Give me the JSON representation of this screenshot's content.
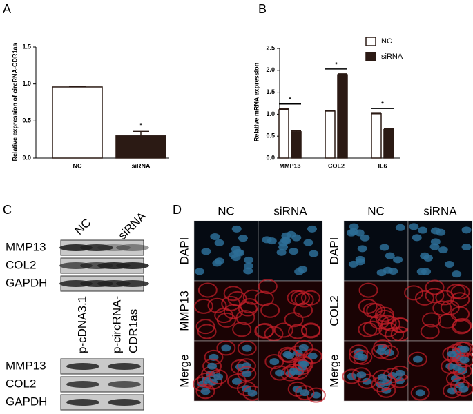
{
  "chart_data": [
    {
      "type": "bar",
      "panel_label": "A",
      "y_label": "Relative expression of circRNA-CDR1as",
      "categories": [
        "NC",
        "siRNA"
      ],
      "values": [
        0.96,
        0.3
      ],
      "errors": [
        0.01,
        0.06
      ],
      "colors": [
        "#ffffff",
        "#2b1a14"
      ],
      "annotations": [
        null,
        "*"
      ],
      "ylim": [
        0,
        1.5
      ],
      "yticks": [
        {
          "value": 0,
          "label": "0.0"
        },
        0.5,
        {
          "value": 1,
          "label": "1.0"
        },
        1.5
      ]
    },
    {
      "type": "grouped_bar",
      "panel_label": "B",
      "y_label": "Relative mRNA expression",
      "categories": [
        "MMP13",
        "COL2",
        "IL6"
      ],
      "series": [
        {
          "name": "NC",
          "color": "#ffffff",
          "values": [
            1.1,
            1.07,
            1.01
          ],
          "errors": [
            0.02,
            0.01,
            0.01
          ]
        },
        {
          "name": "siRNA",
          "color": "#2b1a14",
          "values": [
            0.6,
            1.9,
            0.65
          ],
          "errors": [
            0.02,
            0.02,
            0.02
          ]
        }
      ],
      "annotations": [
        "*",
        "*",
        "*"
      ],
      "legend": "top-right",
      "ylim": [
        0,
        2.5
      ],
      "yticks": [
        {
          "value": 0,
          "label": "0.0"
        },
        0.5,
        {
          "value": 1,
          "label": "1.0"
        },
        1.5,
        {
          "value": 2,
          "label": "2.0"
        },
        2.5
      ]
    }
  ],
  "panel_c": {
    "label": "C",
    "upper": {
      "lanes": [
        "NC",
        "siRNA"
      ],
      "rows": [
        "MMP13",
        "COL2",
        "GAPDH"
      ]
    },
    "lower": {
      "lanes": [
        [
          "p-cDNA3.1"
        ],
        [
          "p-circRNA-",
          "CDR1as"
        ]
      ],
      "rows": [
        "MMP13",
        "COL2",
        "GAPDH"
      ]
    }
  },
  "panel_d": {
    "label": "D",
    "left": {
      "columns": [
        "NC",
        "siRNA"
      ],
      "rows": [
        "DAPI",
        "MMP13",
        "Merge"
      ]
    },
    "right": {
      "columns": [
        "NC",
        "siRNA"
      ],
      "rows": [
        "DAPI",
        "COL2",
        "Merge"
      ]
    }
  }
}
